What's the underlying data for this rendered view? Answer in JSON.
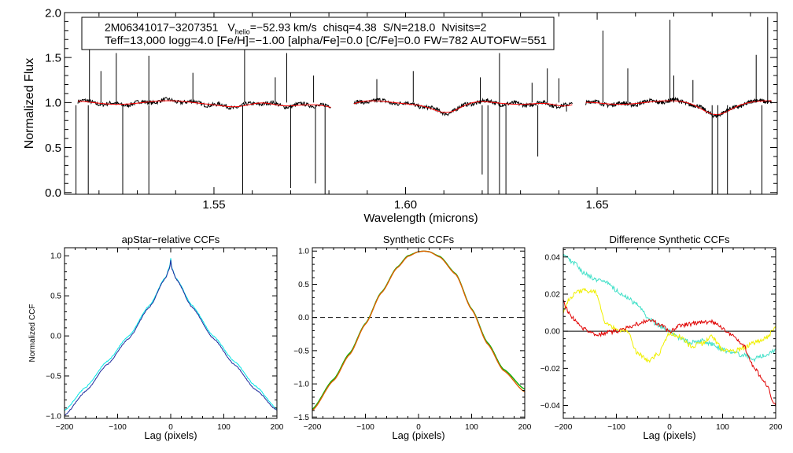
{
  "chart_data": [
    {
      "type": "line",
      "id": "spectrum",
      "xlabel": "Wavelength (microns)",
      "ylabel": "Normalized Flux",
      "xlim": [
        1.511,
        1.697
      ],
      "ylim": [
        -0.02,
        2.0
      ],
      "xticks": [
        {
          "v": 1.55,
          "label": "1.55"
        },
        {
          "v": 1.6,
          "label": "1.60"
        },
        {
          "v": 1.65,
          "label": "1.65"
        }
      ],
      "yticks": [
        {
          "v": 0.0,
          "label": "0.0"
        },
        {
          "v": 0.5,
          "label": "0.5"
        },
        {
          "v": 1.0,
          "label": "1.0"
        },
        {
          "v": 1.5,
          "label": "1.5"
        },
        {
          "v": 2.0,
          "label": "2.0"
        }
      ],
      "annotation": {
        "id_text": "2M06341017−3207351",
        "vhelio_symbol": "V",
        "vhelio_sub": "helio",
        "vhelio_value": "=−52.93 km/s",
        "chisq": "chisq=4.38",
        "snr": "S/N=218.0",
        "nvisits": "Nvisits=2",
        "line2": "Teff=13,000 logg=4.0 [Fe/H]=−1.00 [alpha/Fe]=0.0 [C/Fe]=0.0 FW=782 AUTOFW=551"
      },
      "chips": [
        [
          1.5145,
          1.5805
        ],
        [
          1.5865,
          1.6435
        ],
        [
          1.647,
          1.6955
        ]
      ],
      "series": [
        {
          "name": "observed",
          "color": "#000000"
        },
        {
          "name": "model",
          "color": "#ff0000"
        }
      ],
      "absorption_dips": [
        {
          "x": 1.5565,
          "depth": 0.04,
          "width": 0.005
        },
        {
          "x": 1.568,
          "depth": 0.05,
          "width": 0.005
        },
        {
          "x": 1.583,
          "depth": 0.06,
          "width": 0.004
        },
        {
          "x": 1.611,
          "depth": 0.12,
          "width": 0.005
        },
        {
          "x": 1.6415,
          "depth": 0.06,
          "width": 0.004
        },
        {
          "x": 1.681,
          "depth": 0.12,
          "width": 0.005
        }
      ],
      "spikes_up": [
        {
          "x": 1.5175,
          "y": 1.8
        },
        {
          "x": 1.5205,
          "y": 1.35
        },
        {
          "x": 1.5245,
          "y": 1.55
        },
        {
          "x": 1.533,
          "y": 1.52
        },
        {
          "x": 1.5445,
          "y": 1.33
        },
        {
          "x": 1.558,
          "y": 1.9
        },
        {
          "x": 1.566,
          "y": 1.28
        },
        {
          "x": 1.569,
          "y": 1.55
        },
        {
          "x": 1.576,
          "y": 1.3
        },
        {
          "x": 1.5925,
          "y": 1.26
        },
        {
          "x": 1.602,
          "y": 1.35
        },
        {
          "x": 1.6195,
          "y": 1.28
        },
        {
          "x": 1.6245,
          "y": 1.55
        },
        {
          "x": 1.633,
          "y": 1.22
        },
        {
          "x": 1.637,
          "y": 1.38
        },
        {
          "x": 1.64,
          "y": 1.27
        },
        {
          "x": 1.6515,
          "y": 1.8
        },
        {
          "x": 1.658,
          "y": 1.38
        },
        {
          "x": 1.669,
          "y": 1.92
        },
        {
          "x": 1.67,
          "y": 1.3
        },
        {
          "x": 1.675,
          "y": 1.25
        },
        {
          "x": 1.6915,
          "y": 1.53
        },
        {
          "x": 1.6945,
          "y": 1.95
        }
      ],
      "spikes_down": [
        {
          "x": 1.514,
          "y": -0.02
        },
        {
          "x": 1.5172,
          "y": -0.02
        },
        {
          "x": 1.5262,
          "y": -0.02
        },
        {
          "x": 1.533,
          "y": -0.02
        },
        {
          "x": 1.5575,
          "y": -0.02
        },
        {
          "x": 1.57,
          "y": 0.05
        },
        {
          "x": 1.5765,
          "y": 0.1
        },
        {
          "x": 1.579,
          "y": -0.02
        },
        {
          "x": 1.62,
          "y": 0.2
        },
        {
          "x": 1.6215,
          "y": -0.02
        },
        {
          "x": 1.6245,
          "y": -0.02
        },
        {
          "x": 1.6262,
          "y": -0.02
        },
        {
          "x": 1.6345,
          "y": 0.4
        },
        {
          "x": 1.642,
          "y": 0.9
        },
        {
          "x": 1.68,
          "y": -0.02
        },
        {
          "x": 1.6815,
          "y": -0.02
        },
        {
          "x": 1.684,
          "y": -0.02
        },
        {
          "x": 1.693,
          "y": -0.02
        }
      ]
    },
    {
      "type": "line",
      "id": "ccf_apstar",
      "title": "apStar−relative CCFs",
      "xlabel": "Lag (pixels)",
      "ylabel": "Normalized CCF",
      "xlim": [
        -200,
        200
      ],
      "ylim": [
        -1.03,
        1.1
      ],
      "xticks": [
        {
          "v": -200,
          "label": "−200"
        },
        {
          "v": -100,
          "label": "−100"
        },
        {
          "v": 0,
          "label": "0"
        },
        {
          "v": 100,
          "label": "100"
        },
        {
          "v": 200,
          "label": "200"
        }
      ],
      "yticks": [
        {
          "v": -1.0,
          "label": "−1.0"
        },
        {
          "v": -0.5,
          "label": "−0.5"
        },
        {
          "v": 0.0,
          "label": "0.0"
        },
        {
          "v": 0.5,
          "label": "0.5"
        },
        {
          "v": 1.0,
          "label": "1.0"
        }
      ],
      "series": [
        {
          "name": "visit1",
          "color": "#00e6e6",
          "x": [
            -200,
            -160,
            -120,
            -80,
            -40,
            -10,
            -2,
            0,
            2,
            10,
            40,
            80,
            120,
            160,
            200
          ],
          "y": [
            -0.93,
            -0.64,
            -0.32,
            -0.01,
            0.38,
            0.73,
            0.86,
            0.97,
            0.85,
            0.72,
            0.38,
            0.0,
            -0.32,
            -0.63,
            -0.91
          ]
        },
        {
          "name": "visit2",
          "color": "#1e2a9c",
          "x": [
            -200,
            -160,
            -120,
            -80,
            -40,
            -10,
            -2,
            0,
            2,
            10,
            40,
            80,
            120,
            160,
            200
          ],
          "y": [
            -0.99,
            -0.69,
            -0.36,
            -0.04,
            0.36,
            0.72,
            0.84,
            0.95,
            0.84,
            0.71,
            0.36,
            -0.03,
            -0.36,
            -0.67,
            -0.93
          ]
        }
      ]
    },
    {
      "type": "line",
      "id": "ccf_synthetic",
      "title": "Synthetic CCFs",
      "xlabel": "Lag (pixels)",
      "xlim": [
        -200,
        200
      ],
      "ylim": [
        -1.52,
        1.05
      ],
      "reference_line": 0.0,
      "xticks": [
        {
          "v": -200,
          "label": "−200"
        },
        {
          "v": -100,
          "label": "−100"
        },
        {
          "v": 0,
          "label": "0"
        },
        {
          "v": 100,
          "label": "100"
        },
        {
          "v": 200,
          "label": "200"
        }
      ],
      "yticks": [
        {
          "v": -1.5,
          "label": "−1.5"
        },
        {
          "v": -1.0,
          "label": "−1.0"
        },
        {
          "v": -0.5,
          "label": "−0.5"
        },
        {
          "v": 0.0,
          "label": "0.0"
        },
        {
          "v": 0.5,
          "label": "0.5"
        },
        {
          "v": 1.0,
          "label": "1.0"
        }
      ],
      "series": [
        {
          "name": "visit1",
          "color": "#00b000",
          "x": [
            -200,
            -160,
            -130,
            -100,
            -70,
            -40,
            -20,
            0,
            10,
            20,
            40,
            70,
            100,
            130,
            160,
            200
          ],
          "y": [
            -1.38,
            -0.93,
            -0.54,
            -0.09,
            0.38,
            0.76,
            0.93,
            0.99,
            1.0,
            0.99,
            0.92,
            0.66,
            0.13,
            -0.38,
            -0.78,
            -1.08
          ]
        },
        {
          "name": "visit2",
          "color": "#e06000",
          "x": [
            -200,
            -160,
            -130,
            -100,
            -70,
            -40,
            -20,
            0,
            10,
            20,
            40,
            70,
            100,
            130,
            160,
            200
          ],
          "y": [
            -1.4,
            -0.95,
            -0.56,
            -0.1,
            0.37,
            0.75,
            0.92,
            0.99,
            1.0,
            0.99,
            0.91,
            0.65,
            0.12,
            -0.4,
            -0.8,
            -1.12
          ]
        }
      ]
    },
    {
      "type": "line",
      "id": "ccf_difference",
      "title": "Difference Synthetic CCFs",
      "xlabel": "Lag (pixels)",
      "xlim": [
        -200,
        200
      ],
      "ylim": [
        -0.047,
        0.045
      ],
      "reference_line": 0.0,
      "xticks": [
        {
          "v": -200,
          "label": "−200"
        },
        {
          "v": -100,
          "label": "−100"
        },
        {
          "v": 0,
          "label": "0"
        },
        {
          "v": 100,
          "label": "100"
        },
        {
          "v": 200,
          "label": "200"
        }
      ],
      "yticks": [
        {
          "v": -0.04,
          "label": "−0.04"
        },
        {
          "v": -0.02,
          "label": "−0.02"
        },
        {
          "v": 0.0,
          "label": "0.00"
        },
        {
          "v": 0.02,
          "label": "0.02"
        },
        {
          "v": 0.04,
          "label": "0.04"
        }
      ],
      "series": [
        {
          "name": "cyan",
          "color": "#40e0c8",
          "x": [
            -200,
            -180,
            -160,
            -140,
            -120,
            -100,
            -80,
            -60,
            -40,
            -20,
            0,
            20,
            40,
            60,
            80,
            100,
            120,
            140,
            160,
            180,
            200
          ],
          "y": [
            0.041,
            0.037,
            0.031,
            0.028,
            0.027,
            0.022,
            0.018,
            0.014,
            0.007,
            0.003,
            0.0,
            -0.004,
            -0.006,
            -0.005,
            -0.007,
            -0.01,
            -0.012,
            -0.013,
            -0.015,
            -0.013,
            -0.01
          ]
        },
        {
          "name": "yellow",
          "color": "#f0f000",
          "x": [
            -200,
            -190,
            -175,
            -160,
            -140,
            -120,
            -100,
            -80,
            -60,
            -40,
            -20,
            0,
            20,
            40,
            60,
            80,
            100,
            120,
            140,
            160,
            180,
            200
          ],
          "y": [
            0.01,
            0.017,
            0.021,
            0.022,
            0.021,
            0.004,
            0.001,
            0.0,
            -0.012,
            -0.016,
            -0.012,
            -0.001,
            -0.003,
            -0.008,
            -0.007,
            -0.003,
            -0.01,
            -0.011,
            -0.009,
            -0.006,
            -0.004,
            0.002
          ]
        },
        {
          "name": "red",
          "color": "#e00000",
          "x": [
            -200,
            -190,
            -175,
            -160,
            -140,
            -120,
            -100,
            -80,
            -60,
            -40,
            -20,
            0,
            20,
            40,
            60,
            80,
            100,
            120,
            140,
            160,
            180,
            200
          ],
          "y": [
            0.016,
            0.01,
            0.005,
            0.001,
            -0.002,
            -0.001,
            0.0,
            0.002,
            0.004,
            0.006,
            0.004,
            0.0,
            0.003,
            0.004,
            0.005,
            0.005,
            0.002,
            -0.003,
            -0.008,
            -0.02,
            -0.028,
            -0.04
          ]
        }
      ]
    }
  ]
}
